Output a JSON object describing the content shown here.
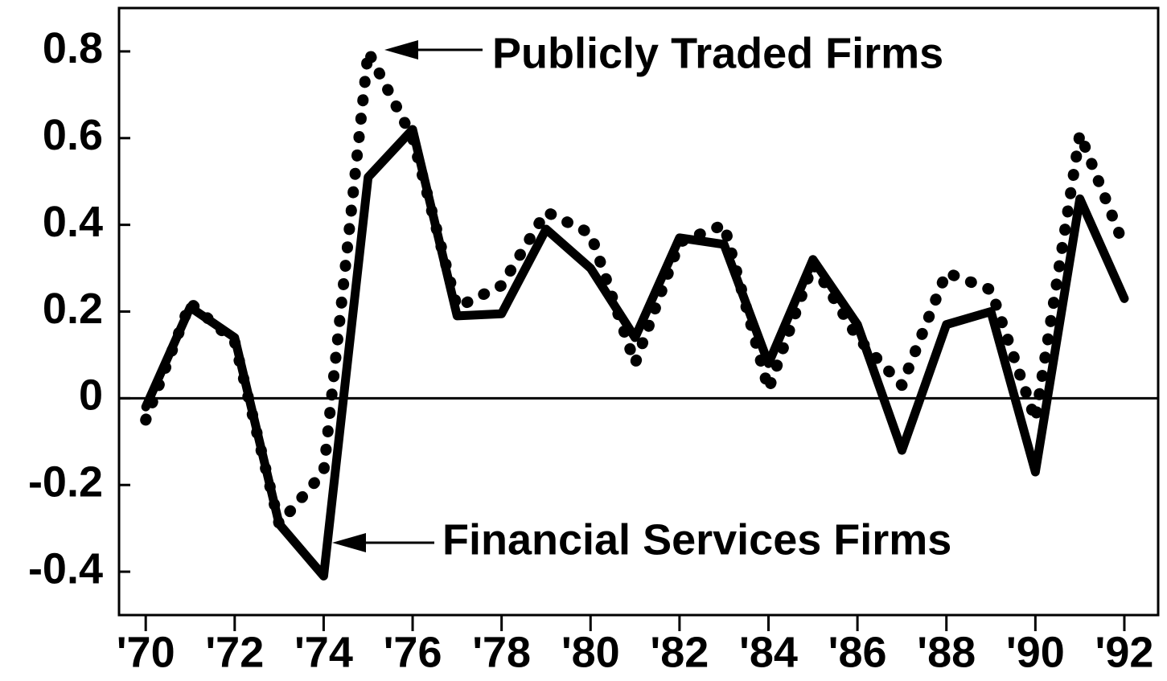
{
  "chart_data": {
    "type": "line",
    "x": [
      1970,
      1971,
      1972,
      1973,
      1974,
      1975,
      1976,
      1977,
      1978,
      1979,
      1980,
      1981,
      1982,
      1983,
      1984,
      1985,
      1986,
      1987,
      1988,
      1989,
      1990,
      1991,
      1992
    ],
    "series": [
      {
        "name": "Financial Services Firms",
        "color": "#000000",
        "line_style": "solid",
        "values": [
          -0.02,
          0.21,
          0.14,
          -0.29,
          -0.41,
          0.51,
          0.62,
          0.19,
          0.195,
          0.39,
          0.3,
          0.14,
          0.37,
          0.355,
          0.08,
          0.32,
          0.17,
          -0.12,
          0.17,
          0.2,
          -0.17,
          0.46,
          0.23
        ]
      },
      {
        "name": "Publicly Traded Firms",
        "color": "#000000",
        "line_style": "dotted",
        "values": [
          -0.05,
          0.22,
          0.13,
          -0.29,
          -0.17,
          0.8,
          0.6,
          0.21,
          0.26,
          0.43,
          0.38,
          0.08,
          0.36,
          0.4,
          0.02,
          0.31,
          0.14,
          0.03,
          0.29,
          0.25,
          -0.05,
          0.61,
          0.35
        ]
      }
    ],
    "xlim": [
      1969.4,
      1992.76
    ],
    "ylim": [
      -0.5,
      0.9
    ],
    "xticks": [
      {
        "value": 1970,
        "label": "'70"
      },
      {
        "value": 1972,
        "label": "'72"
      },
      {
        "value": 1974,
        "label": "'74"
      },
      {
        "value": 1976,
        "label": "'76"
      },
      {
        "value": 1978,
        "label": "'78"
      },
      {
        "value": 1980,
        "label": "'80"
      },
      {
        "value": 1982,
        "label": "'82"
      },
      {
        "value": 1984,
        "label": "'84"
      },
      {
        "value": 1986,
        "label": "'86"
      },
      {
        "value": 1988,
        "label": "'88"
      },
      {
        "value": 1990,
        "label": "'90"
      },
      {
        "value": 1992,
        "label": "'92"
      }
    ],
    "yticks": [
      -0.4,
      -0.2,
      0,
      0.2,
      0.4,
      0.6,
      0.8
    ]
  }
}
